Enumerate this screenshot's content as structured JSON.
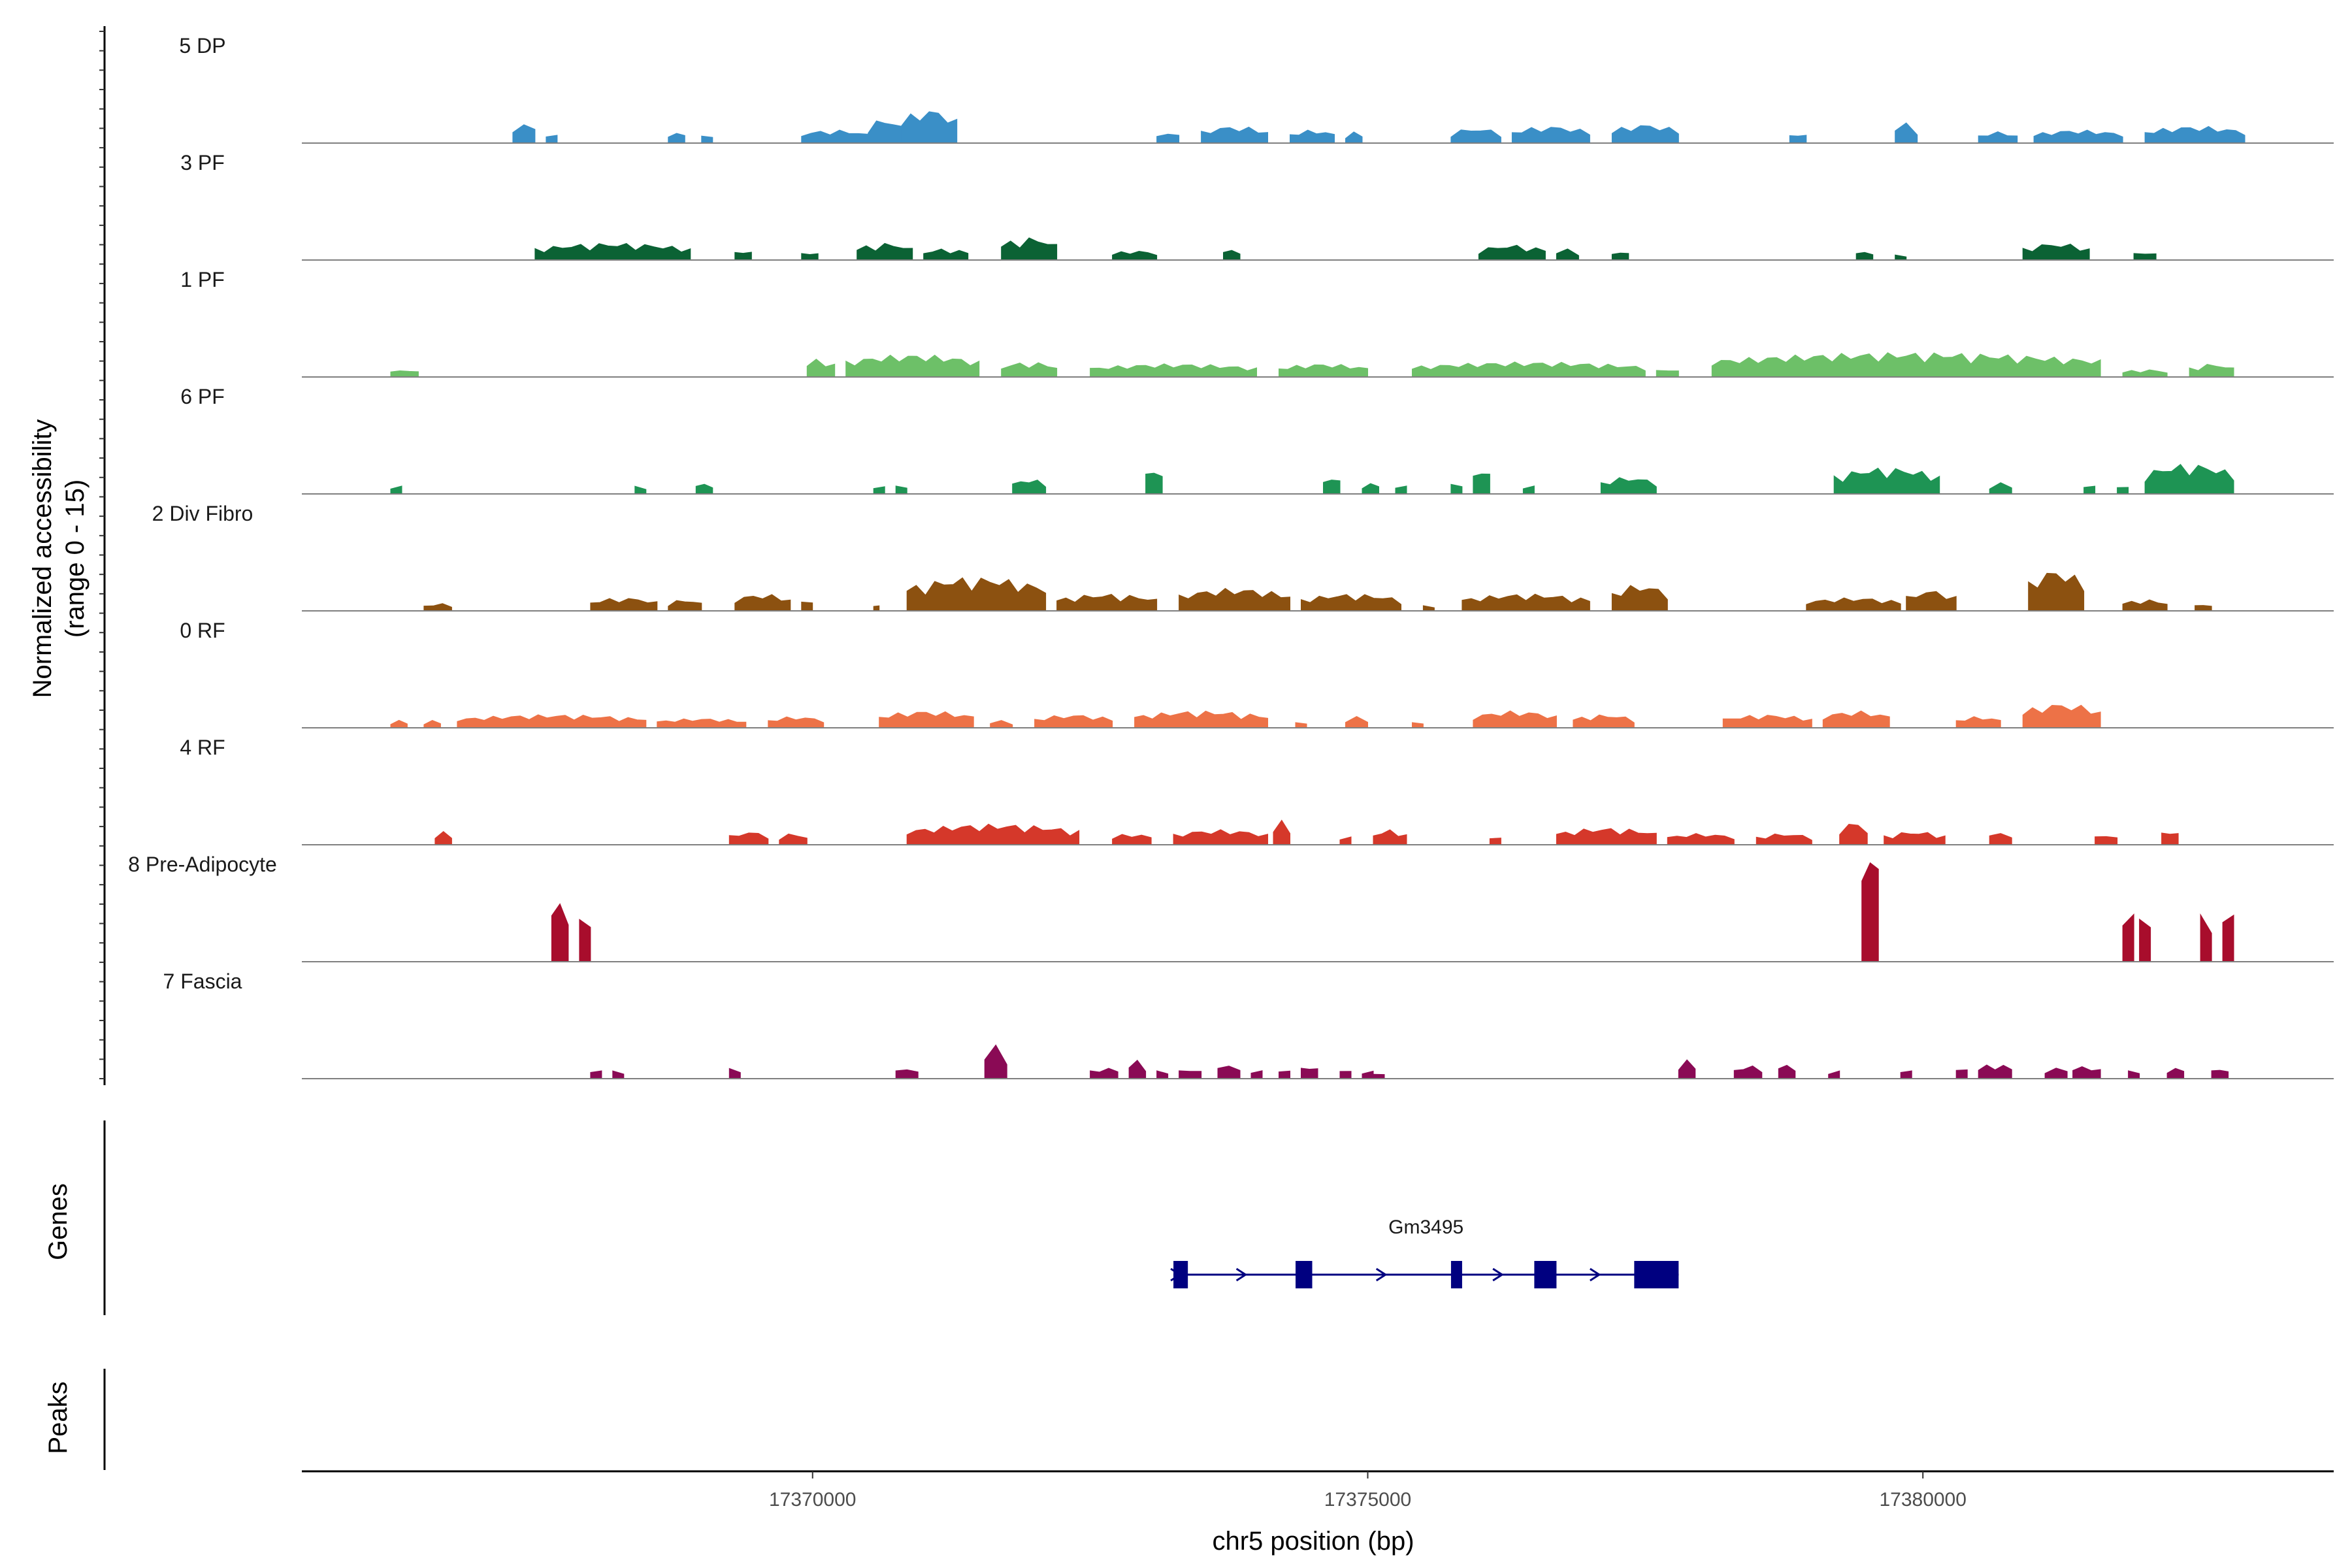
{
  "chart_data": {
    "type": "area",
    "title": "",
    "xlabel": "chr5 position (bp)",
    "ylabel": "Normalized accessibility",
    "ylabel_sub": "(range 0 - 15)",
    "ylim": [
      0,
      15
    ],
    "xlim": [
      17365400,
      17383700
    ],
    "xticks": [
      17370000,
      17375000,
      17380000
    ],
    "xtick_labels": [
      "17370000",
      "17375000",
      "17380000"
    ],
    "gene_panel_label": "Genes",
    "peaks_panel_label": "Peaks",
    "series": [
      {
        "name": "5 DP",
        "color": "#3a8fc7",
        "regions": [
          [
            17367300,
            17367500,
            0.55
          ],
          [
            17367600,
            17367700,
            0.3
          ],
          [
            17368700,
            17368850,
            0.3
          ],
          [
            17369000,
            17369100,
            0.3
          ],
          [
            17369900,
            17370500,
            0.35
          ],
          [
            17370500,
            17370800,
            0.65
          ],
          [
            17370800,
            17371300,
            0.9
          ],
          [
            17373100,
            17373300,
            0.3
          ],
          [
            17373500,
            17374100,
            0.45
          ],
          [
            17374300,
            17374700,
            0.35
          ],
          [
            17374800,
            17374950,
            0.3
          ],
          [
            17375750,
            17376200,
            0.4
          ],
          [
            17376300,
            17377000,
            0.45
          ],
          [
            17377200,
            17377800,
            0.5
          ],
          [
            17378800,
            17378950,
            0.3
          ],
          [
            17379750,
            17379950,
            0.55
          ],
          [
            17380500,
            17380850,
            0.3
          ],
          [
            17381000,
            17381800,
            0.35
          ],
          [
            17382000,
            17382900,
            0.45
          ]
        ]
      },
      {
        "name": "3 PF",
        "color": "#0b6234",
        "regions": [
          [
            17367500,
            17368900,
            0.45
          ],
          [
            17369300,
            17369450,
            0.3
          ],
          [
            17369900,
            17370050,
            0.25
          ],
          [
            17370400,
            17370900,
            0.45
          ],
          [
            17371000,
            17371400,
            0.3
          ],
          [
            17371700,
            17372200,
            0.6
          ],
          [
            17372700,
            17373100,
            0.25
          ],
          [
            17373700,
            17373850,
            0.3
          ],
          [
            17376000,
            17376600,
            0.4
          ],
          [
            17376700,
            17376900,
            0.3
          ],
          [
            17377200,
            17377350,
            0.25
          ],
          [
            17379400,
            17379550,
            0.25
          ],
          [
            17379750,
            17379850,
            0.2
          ],
          [
            17380900,
            17381500,
            0.45
          ],
          [
            17381900,
            17382100,
            0.25
          ]
        ]
      },
      {
        "name": "1 PF",
        "color": "#6dc068",
        "regions": [
          [
            17366200,
            17366450,
            0.2
          ],
          [
            17369950,
            17370200,
            0.5
          ],
          [
            17370300,
            17371500,
            0.6
          ],
          [
            17371700,
            17372200,
            0.4
          ],
          [
            17372500,
            17374000,
            0.35
          ],
          [
            17374200,
            17375000,
            0.35
          ],
          [
            17375400,
            17377500,
            0.4
          ],
          [
            17377600,
            17377800,
            0.25
          ],
          [
            17378100,
            17381600,
            0.65
          ],
          [
            17381800,
            17382200,
            0.2
          ],
          [
            17382400,
            17382800,
            0.35
          ]
        ]
      },
      {
        "name": "6 PF",
        "color": "#1e9454",
        "regions": [
          [
            17366200,
            17366300,
            0.3
          ],
          [
            17368400,
            17368500,
            0.3
          ],
          [
            17368950,
            17369100,
            0.3
          ],
          [
            17370550,
            17370650,
            0.3
          ],
          [
            17370750,
            17370850,
            0.3
          ],
          [
            17371800,
            17372100,
            0.4
          ],
          [
            17373000,
            17373150,
            0.75
          ],
          [
            17374600,
            17374750,
            0.5
          ],
          [
            17374950,
            17375100,
            0.3
          ],
          [
            17375250,
            17375350,
            0.3
          ],
          [
            17375750,
            17375850,
            0.4
          ],
          [
            17375950,
            17376100,
            0.75
          ],
          [
            17376400,
            17376500,
            0.3
          ],
          [
            17377100,
            17377600,
            0.45
          ],
          [
            17379200,
            17380150,
            0.7
          ],
          [
            17380600,
            17380800,
            0.3
          ],
          [
            17381450,
            17381550,
            0.3
          ],
          [
            17381750,
            17381850,
            0.3
          ],
          [
            17382000,
            17382800,
            0.8
          ]
        ]
      },
      {
        "name": "2 Div Fibro",
        "color": "#8c5110",
        "regions": [
          [
            17366500,
            17366750,
            0.2
          ],
          [
            17368000,
            17368600,
            0.35
          ],
          [
            17368700,
            17369000,
            0.3
          ],
          [
            17369300,
            17369800,
            0.45
          ],
          [
            17369900,
            17370000,
            0.35
          ],
          [
            17370550,
            17370600,
            0.2
          ],
          [
            17370850,
            17372100,
            0.9
          ],
          [
            17372200,
            17373100,
            0.45
          ],
          [
            17373300,
            17374300,
            0.6
          ],
          [
            17374400,
            17375300,
            0.45
          ],
          [
            17375500,
            17375600,
            0.2
          ],
          [
            17375850,
            17377000,
            0.45
          ],
          [
            17377200,
            17377700,
            0.7
          ],
          [
            17378950,
            17379800,
            0.35
          ],
          [
            17379850,
            17380300,
            0.55
          ],
          [
            17380950,
            17381450,
            1.1
          ],
          [
            17381800,
            17382200,
            0.3
          ],
          [
            17382450,
            17382600,
            0.2
          ]
        ]
      },
      {
        "name": "0 RF",
        "color": "#ed7247",
        "regions": [
          [
            17366200,
            17366350,
            0.2
          ],
          [
            17366500,
            17366650,
            0.2
          ],
          [
            17366800,
            17368500,
            0.35
          ],
          [
            17368600,
            17369400,
            0.25
          ],
          [
            17369600,
            17370100,
            0.3
          ],
          [
            17370600,
            17371450,
            0.45
          ],
          [
            17371600,
            17371800,
            0.2
          ],
          [
            17372000,
            17372700,
            0.35
          ],
          [
            17372900,
            17374100,
            0.45
          ],
          [
            17374350,
            17374450,
            0.2
          ],
          [
            17374800,
            17375000,
            0.3
          ],
          [
            17375400,
            17375500,
            0.2
          ],
          [
            17375950,
            17376700,
            0.45
          ],
          [
            17376850,
            17377400,
            0.35
          ],
          [
            17378200,
            17379000,
            0.35
          ],
          [
            17379100,
            17379700,
            0.45
          ],
          [
            17380300,
            17380700,
            0.3
          ],
          [
            17380900,
            17381600,
            0.65
          ]
        ]
      },
      {
        "name": "4 RF",
        "color": "#d5382a",
        "regions": [
          [
            17366600,
            17366750,
            0.35
          ],
          [
            17369250,
            17369600,
            0.35
          ],
          [
            17369700,
            17369950,
            0.3
          ],
          [
            17370850,
            17372400,
            0.55
          ],
          [
            17372700,
            17373050,
            0.3
          ],
          [
            17373250,
            17374100,
            0.4
          ],
          [
            17374150,
            17374300,
            0.65
          ],
          [
            17374750,
            17374850,
            0.3
          ],
          [
            17375050,
            17375350,
            0.4
          ],
          [
            17376100,
            17376200,
            0.3
          ],
          [
            17376700,
            17377600,
            0.45
          ],
          [
            17377700,
            17378300,
            0.3
          ],
          [
            17378500,
            17379000,
            0.3
          ],
          [
            17379250,
            17379500,
            0.6
          ],
          [
            17379650,
            17380200,
            0.35
          ],
          [
            17380600,
            17380800,
            0.35
          ],
          [
            17381550,
            17381750,
            0.3
          ],
          [
            17382150,
            17382300,
            0.45
          ]
        ]
      },
      {
        "name": "8 Pre-Adipocyte",
        "color": "#a80d2c",
        "regions": [
          [
            17367650,
            17367800,
            1.8
          ],
          [
            17367900,
            17368000,
            1.8
          ],
          [
            17379450,
            17379600,
            3.5
          ],
          [
            17381800,
            17381900,
            1.8
          ],
          [
            17381950,
            17382050,
            1.8
          ],
          [
            17382500,
            17382600,
            1.8
          ],
          [
            17382700,
            17382800,
            1.8
          ]
        ]
      },
      {
        "name": "7 Fascia",
        "color": "#8a0a55",
        "regions": [
          [
            17368000,
            17368100,
            0.3
          ],
          [
            17368200,
            17368300,
            0.3
          ],
          [
            17369250,
            17369350,
            0.4
          ],
          [
            17370750,
            17370950,
            0.3
          ],
          [
            17371550,
            17371750,
            0.9
          ],
          [
            17372500,
            17372750,
            0.3
          ],
          [
            17372850,
            17373000,
            0.5
          ],
          [
            17373100,
            17373200,
            0.3
          ],
          [
            17373300,
            17373500,
            0.3
          ],
          [
            17373650,
            17373850,
            0.4
          ],
          [
            17373950,
            17374050,
            0.3
          ],
          [
            17374200,
            17374300,
            0.3
          ],
          [
            17374400,
            17374550,
            0.4
          ],
          [
            17374750,
            17374850,
            0.3
          ],
          [
            17374950,
            17375050,
            0.3
          ],
          [
            17375050,
            17375150,
            0.2
          ],
          [
            17377800,
            17377950,
            0.5
          ],
          [
            17378300,
            17378550,
            0.35
          ],
          [
            17378700,
            17378850,
            0.4
          ],
          [
            17379150,
            17379250,
            0.3
          ],
          [
            17379800,
            17379900,
            0.3
          ],
          [
            17380300,
            17380400,
            0.4
          ],
          [
            17380500,
            17380800,
            0.4
          ],
          [
            17381100,
            17381300,
            0.3
          ],
          [
            17381350,
            17381600,
            0.35
          ],
          [
            17381850,
            17381950,
            0.3
          ],
          [
            17382200,
            17382350,
            0.3
          ],
          [
            17382600,
            17382750,
            0.3
          ]
        ]
      }
    ],
    "genes": [
      {
        "name": "Gm3495",
        "color": "#000080",
        "strand": "+",
        "start": 17373250,
        "end": 17377800,
        "exons": [
          [
            17373250,
            17373380
          ],
          [
            17374350,
            17374500
          ],
          [
            17375750,
            17375850
          ],
          [
            17376500,
            17376700
          ],
          [
            17377400,
            17377800
          ]
        ]
      }
    ],
    "peaks": []
  }
}
